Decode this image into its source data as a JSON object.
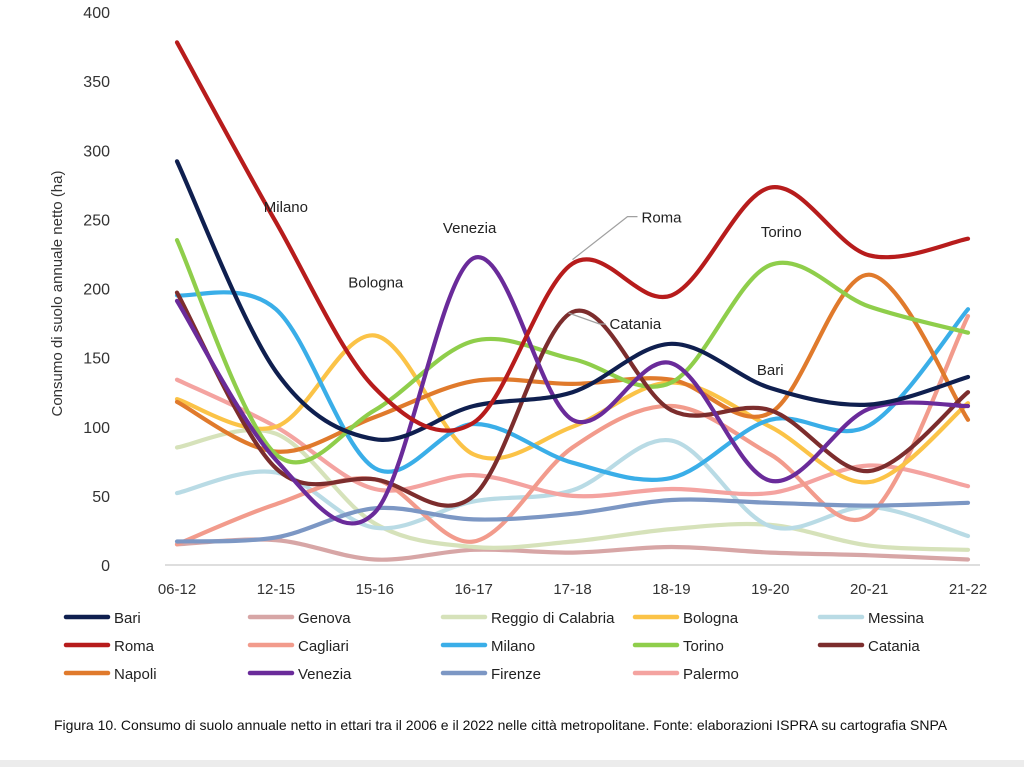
{
  "caption": "Figura 10. Consumo di suolo annuale netto in ettari tra il 2006 e il 2022 nelle città metropolitane. Fonte: elaborazioni ISPRA su cartografia SNPA",
  "chart_data": {
    "type": "line",
    "smooth": true,
    "ylabel": "Consumo di suolo annuale netto (ha)",
    "xlabel": "",
    "ylim": [
      0,
      400
    ],
    "yticks": [
      0,
      50,
      100,
      150,
      200,
      250,
      300,
      350,
      400
    ],
    "grid": false,
    "legend_position": "bottom",
    "categories": [
      "06-12",
      "12-15",
      "15-16",
      "16-17",
      "17-18",
      "18-19",
      "19-20",
      "20-21",
      "21-22"
    ],
    "series": [
      {
        "name": "Bari",
        "color": "#0f1f4f",
        "values": [
          292,
          140,
          91,
          115,
          125,
          160,
          128,
          116,
          136
        ]
      },
      {
        "name": "Genova",
        "color": "#d7a6a6",
        "values": [
          15,
          18,
          4,
          11,
          9,
          13,
          9,
          7,
          4
        ]
      },
      {
        "name": "Reggio di Calabria",
        "color": "#d6e2ba",
        "values": [
          85,
          95,
          30,
          13,
          17,
          26,
          29,
          14,
          11
        ]
      },
      {
        "name": "Bologna",
        "color": "#fbc347",
        "values": [
          120,
          100,
          166,
          80,
          100,
          132,
          100,
          60,
          117
        ]
      },
      {
        "name": "Messina",
        "color": "#b9dbe5",
        "values": [
          52,
          67,
          27,
          46,
          54,
          90,
          28,
          42,
          21
        ]
      },
      {
        "name": "Roma",
        "color": "#b71c1c",
        "values": [
          378,
          248,
          128,
          103,
          218,
          195,
          273,
          224,
          236
        ]
      },
      {
        "name": "Cagliari",
        "color": "#f29b8c",
        "values": [
          15,
          44,
          62,
          17,
          85,
          115,
          80,
          36,
          180
        ]
      },
      {
        "name": "Milano",
        "color": "#3aaee8",
        "values": [
          195,
          185,
          70,
          102,
          74,
          63,
          105,
          101,
          185
        ]
      },
      {
        "name": "Torino",
        "color": "#8fce4b",
        "values": [
          235,
          80,
          112,
          162,
          149,
          132,
          217,
          187,
          168
        ]
      },
      {
        "name": "Catania",
        "color": "#7c2d2d",
        "values": [
          197,
          70,
          62,
          50,
          183,
          112,
          112,
          68,
          125
        ]
      },
      {
        "name": "Napoli",
        "color": "#e07a2c",
        "values": [
          118,
          82,
          107,
          133,
          131,
          134,
          110,
          210,
          105
        ]
      },
      {
        "name": "Venezia",
        "color": "#6a2b9a",
        "values": [
          191,
          76,
          38,
          222,
          105,
          146,
          61,
          113,
          115
        ]
      },
      {
        "name": "Firenze",
        "color": "#7c97c4",
        "values": [
          17,
          20,
          41,
          33,
          37,
          47,
          45,
          43,
          45
        ]
      },
      {
        "name": "Palermo",
        "color": "#f4a3a0",
        "values": [
          134,
          100,
          55,
          65,
          50,
          55,
          52,
          72,
          57
        ]
      }
    ],
    "annotations": [
      {
        "text": "Milano",
        "series": "Milano",
        "index": 1
      },
      {
        "text": "Bologna",
        "series": "Bologna",
        "index": 2
      },
      {
        "text": "Venezia",
        "series": "Venezia",
        "index": 3
      },
      {
        "text": "Roma",
        "series": "Roma",
        "index": 4
      },
      {
        "text": "Catania",
        "series": "Catania",
        "index": 4
      },
      {
        "text": "Torino",
        "series": "Torino",
        "index": 6
      },
      {
        "text": "Bari",
        "series": "Bari",
        "index": 6
      }
    ]
  }
}
